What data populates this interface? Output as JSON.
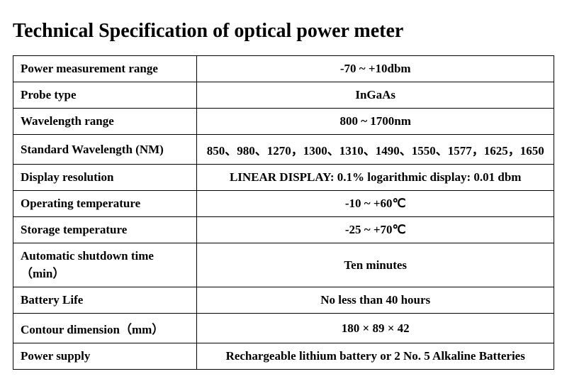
{
  "title": "Technical Specification of optical power meter",
  "spec": {
    "rows": [
      {
        "label": "Power measurement range",
        "value": "-70 ~ +10dbm"
      },
      {
        "label": "Probe type",
        "value": "InGaAs"
      },
      {
        "label": "Wavelength range",
        "value": "800 ~ 1700nm"
      },
      {
        "label": "Standard Wavelength (NM)",
        "value": "850、980、1270，1300、1310、1490、1550、1577，1625，1650"
      },
      {
        "label": "Display resolution",
        "value": "LINEAR DISPLAY: 0.1% logarithmic display: 0.01 dbm"
      },
      {
        "label": "Operating temperature",
        "value": "-10 ~ +60℃"
      },
      {
        "label": "Storage temperature",
        "value": "-25 ~ +70℃"
      },
      {
        "label": "Automatic shutdown time（min）",
        "value": "Ten minutes"
      },
      {
        "label": "Battery Life",
        "value": "No less than 40 hours"
      },
      {
        "label": "Contour dimension（mm）",
        "value": "180 × 89 × 42"
      },
      {
        "label": "Power supply",
        "value": "Rechargeable lithium battery or 2 No. 5 Alkaline Batteries"
      }
    ]
  },
  "style": {
    "title_fontsize": 28,
    "cell_fontsize": 17,
    "border_color": "#000000",
    "background_color": "#ffffff",
    "text_color": "#000000",
    "label_col_width_pct": 34,
    "value_col_width_pct": 66
  }
}
